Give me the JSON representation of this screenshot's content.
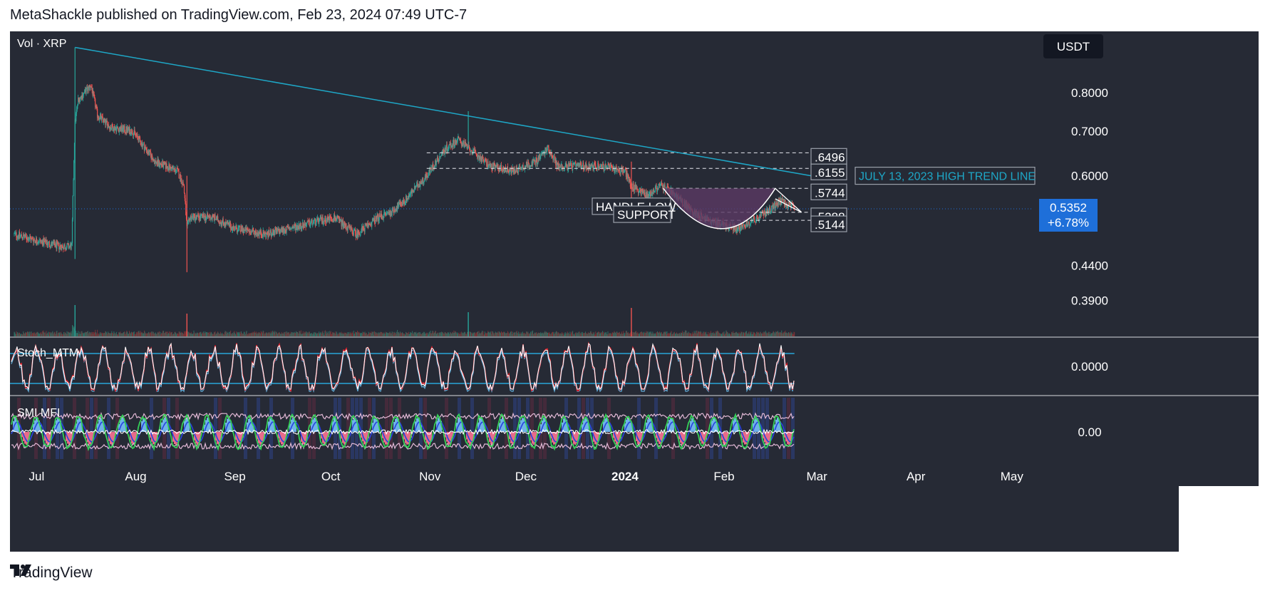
{
  "header": {
    "text": "MetaShackle published on TradingView.com, Feb 23, 2024 07:49 UTC-7"
  },
  "footer": {
    "brand": "TradingView",
    "logo_icon": "tradingview-logo-icon"
  },
  "colors": {
    "background": "#262a35",
    "up": "#26a69a",
    "down": "#ef5350",
    "trend_line": "#1ea7c7",
    "price_badge": "#1e6fd9",
    "stoch_band": "#29a6d9",
    "cup_fill": "#5b3a64"
  },
  "chart_data": [
    {
      "type": "candlestick",
      "symbol_label": "Vol · XRP",
      "currency": "USDT",
      "scale": "log",
      "x_ticks": [
        "Jul",
        "Aug",
        "Sep",
        "Oct",
        "Nov",
        "Dec",
        "2024",
        "Feb",
        "Mar",
        "Apr",
        "May"
      ],
      "y_ticks": [
        "0.8000",
        "0.7000",
        "0.6000",
        "0.4400",
        "0.3900"
      ],
      "ylim": [
        0.36,
        0.95
      ],
      "last_price": "0.5352",
      "last_change": "+6.78%",
      "close_path": {
        "dates": [
          "2023-06-24",
          "2023-07-01",
          "2023-07-08",
          "2023-07-12",
          "2023-07-13",
          "2023-07-14",
          "2023-07-18",
          "2023-07-20",
          "2023-07-24",
          "2023-07-31",
          "2023-08-07",
          "2023-08-14",
          "2023-08-16",
          "2023-08-17",
          "2023-08-18",
          "2023-08-25",
          "2023-09-01",
          "2023-09-11",
          "2023-09-18",
          "2023-09-25",
          "2023-10-02",
          "2023-10-09",
          "2023-10-16",
          "2023-10-20",
          "2023-10-24",
          "2023-10-31",
          "2023-11-06",
          "2023-11-10",
          "2023-11-13",
          "2023-11-20",
          "2023-11-27",
          "2023-12-04",
          "2023-12-08",
          "2023-12-11",
          "2023-12-18",
          "2023-12-25",
          "2024-01-01",
          "2024-01-03",
          "2024-01-08",
          "2024-01-12",
          "2024-01-15",
          "2024-01-22",
          "2024-01-29",
          "2024-02-05",
          "2024-02-12",
          "2024-02-19",
          "2024-02-23"
        ],
        "values": [
          0.49,
          0.48,
          0.47,
          0.47,
          0.72,
          0.78,
          0.82,
          0.74,
          0.71,
          0.7,
          0.63,
          0.61,
          0.58,
          0.5,
          0.52,
          0.52,
          0.5,
          0.49,
          0.5,
          0.51,
          0.52,
          0.49,
          0.52,
          0.53,
          0.55,
          0.6,
          0.66,
          0.68,
          0.66,
          0.62,
          0.61,
          0.63,
          0.66,
          0.62,
          0.62,
          0.62,
          0.61,
          0.58,
          0.56,
          0.58,
          0.57,
          0.53,
          0.51,
          0.5,
          0.52,
          0.55,
          0.5352
        ]
      },
      "trend_line": {
        "label": "JULY 13, 2023 HIGH TREND LINE",
        "from": {
          "date": "2023-07-13",
          "price": 0.935
        },
        "to": {
          "date": "2024-02-23",
          "price": 0.6
        }
      },
      "levels": [
        {
          "label": ".6496",
          "value": 0.6496
        },
        {
          "label": ".6155",
          "value": 0.6155
        },
        {
          "label": ".5744",
          "value": 0.5744
        },
        {
          "label": ".5288",
          "value": 0.5288
        },
        {
          "label": ".5144",
          "value": 0.5144
        }
      ],
      "annotations": [
        {
          "text": "HANDLE LOW",
          "level": 0.5288
        },
        {
          "text": "SUPPORT",
          "level": 0.5144
        }
      ],
      "pattern": {
        "name": "cup-and-handle",
        "cup_start": "2024-01-13",
        "cup_bottom": {
          "date": "2024-02-01",
          "price": 0.498
        },
        "cup_end": "2024-02-17",
        "rim": 0.5744
      }
    },
    {
      "type": "line",
      "label": "Stoch_MTM",
      "y_ticks": [
        "0.0000"
      ],
      "bands": [
        "upper",
        "lower"
      ]
    },
    {
      "type": "area",
      "label": "SMI MFI",
      "y_ticks": [
        "0.00"
      ]
    }
  ]
}
